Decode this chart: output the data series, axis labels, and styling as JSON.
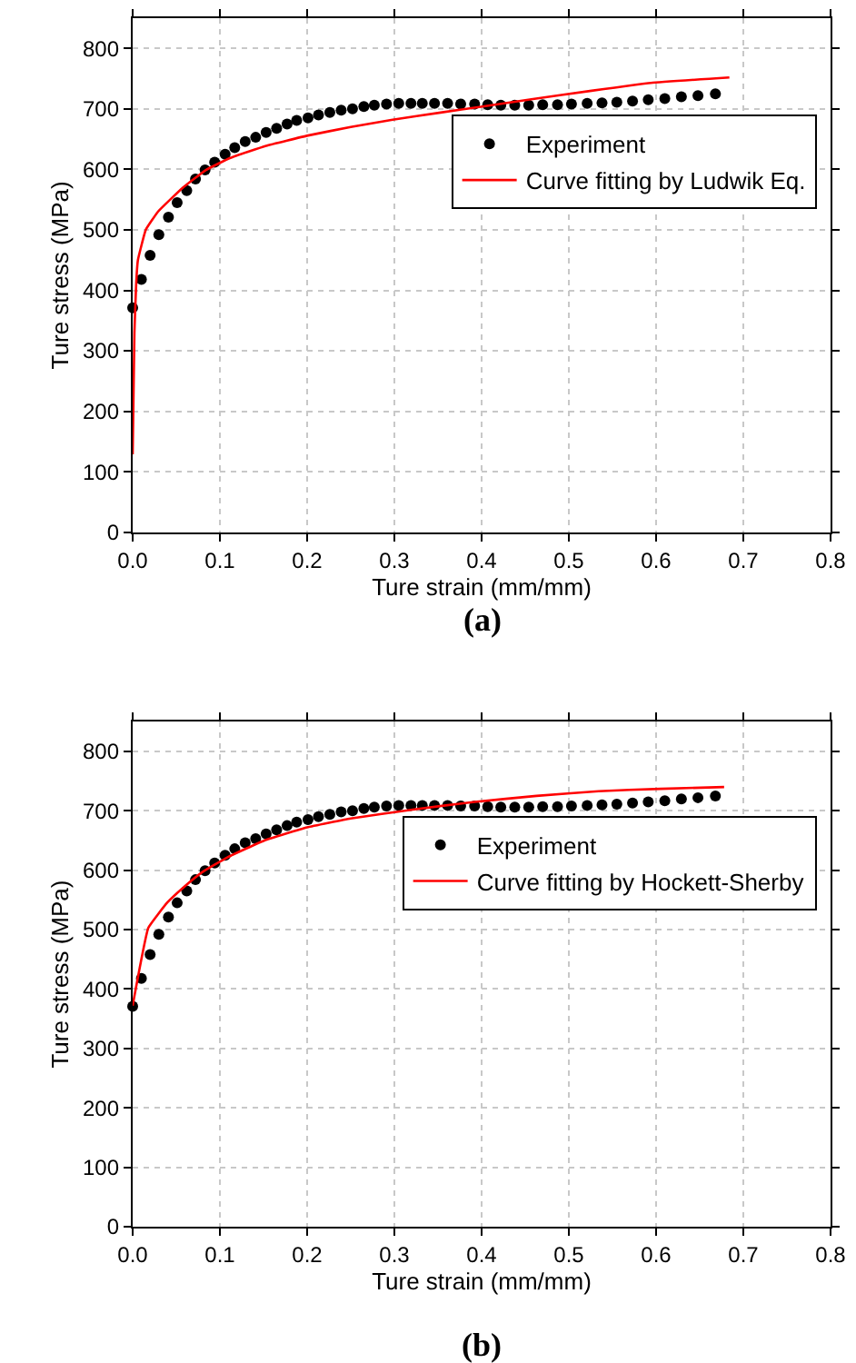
{
  "chart_data": [
    {
      "type": "scatter",
      "xlabel": "Ture strain (mm/mm)",
      "ylabel": "Ture stress (MPa)",
      "annotations": [
        "(a)"
      ],
      "xlim": [
        0,
        0.8
      ],
      "xticks": [
        {
          "value": 0,
          "label": "0.0"
        },
        0.1,
        0.2,
        0.3,
        0.4,
        0.5,
        0.6,
        0.7,
        0.8
      ],
      "ylim": [
        0,
        850
      ],
      "yticks": [
        0,
        100,
        200,
        300,
        400,
        500,
        600,
        700,
        800
      ],
      "grid": true,
      "legend": "right",
      "line_style": "solid",
      "series": [
        {
          "name": "Experiment",
          "type": "scatter",
          "marker": "circle",
          "color": "#000000",
          "x": [
            0,
            0.01,
            0.02,
            0.03,
            0.041,
            0.051,
            0.062,
            0.072,
            0.083,
            0.094,
            0.106,
            0.117,
            0.129,
            0.141,
            0.153,
            0.165,
            0.177,
            0.188,
            0.201,
            0.213,
            0.226,
            0.239,
            0.252,
            0.265,
            0.277,
            0.291,
            0.305,
            0.319,
            0.332,
            0.346,
            0.361,
            0.376,
            0.392,
            0.407,
            0.422,
            0.438,
            0.454,
            0.47,
            0.487,
            0.503,
            0.521,
            0.538,
            0.555,
            0.573,
            0.591,
            0.61,
            0.629,
            0.648,
            0.668
          ],
          "values": [
            371,
            418,
            458,
            492,
            521,
            545,
            565,
            584,
            599,
            612,
            625,
            636,
            646,
            653,
            661,
            668,
            675,
            681,
            685,
            690,
            694,
            698,
            700,
            704,
            706,
            708,
            709,
            709,
            709,
            709,
            709,
            708,
            708,
            707,
            706,
            706,
            706,
            707,
            707,
            708,
            709,
            710,
            711,
            713,
            715,
            717,
            720,
            722,
            725
          ]
        },
        {
          "name": "Curve fitting by Ludwik Eq.",
          "type": "line",
          "color": "#ff0000",
          "x": [
            0,
            0.002,
            0.004,
            0.006,
            0.015,
            0.029,
            0.057,
            0.084,
            0.112,
            0.153,
            0.201,
            0.25,
            0.298,
            0.353,
            0.401,
            0.457,
            0.526,
            0.594,
            0.684
          ],
          "values": [
            129,
            330,
            410,
            450,
            500,
            530,
            569,
            599,
            619,
            639,
            656,
            670,
            682,
            694,
            704,
            716,
            730,
            743,
            752
          ]
        }
      ]
    },
    {
      "type": "scatter",
      "xlabel": "Ture strain (mm/mm)",
      "ylabel": "Ture stress (MPa)",
      "annotations": [
        "(b)"
      ],
      "xlim": [
        0,
        0.8
      ],
      "xticks": [
        {
          "value": 0,
          "label": "0.0"
        },
        0.1,
        0.2,
        0.3,
        0.4,
        0.5,
        0.6,
        0.7,
        0.8
      ],
      "ylim": [
        0,
        850
      ],
      "yticks": [
        0,
        100,
        200,
        300,
        400,
        500,
        600,
        700,
        800
      ],
      "grid": true,
      "legend": "right",
      "line_style": "solid",
      "series": [
        {
          "name": "Experiment",
          "type": "scatter",
          "marker": "circle",
          "color": "#000000",
          "x": [
            0,
            0.01,
            0.02,
            0.03,
            0.041,
            0.051,
            0.062,
            0.072,
            0.083,
            0.094,
            0.106,
            0.117,
            0.129,
            0.141,
            0.153,
            0.165,
            0.177,
            0.188,
            0.201,
            0.213,
            0.226,
            0.239,
            0.252,
            0.265,
            0.277,
            0.291,
            0.305,
            0.319,
            0.332,
            0.346,
            0.361,
            0.376,
            0.392,
            0.407,
            0.422,
            0.438,
            0.454,
            0.47,
            0.487,
            0.503,
            0.521,
            0.538,
            0.555,
            0.573,
            0.591,
            0.61,
            0.629,
            0.648,
            0.668
          ],
          "values": [
            371,
            418,
            458,
            492,
            521,
            545,
            565,
            584,
            599,
            612,
            625,
            636,
            646,
            653,
            661,
            668,
            675,
            681,
            685,
            690,
            694,
            698,
            700,
            704,
            706,
            708,
            709,
            709,
            709,
            709,
            709,
            708,
            708,
            707,
            706,
            706,
            706,
            707,
            707,
            708,
            709,
            710,
            711,
            713,
            715,
            717,
            720,
            722,
            725
          ]
        },
        {
          "name": "Curve fitting by Hockett-Sherby",
          "type": "line",
          "color": "#ff0000",
          "x": [
            0,
            0.018,
            0.04,
            0.059,
            0.08,
            0.109,
            0.151,
            0.2,
            0.25,
            0.321,
            0.392,
            0.463,
            0.534,
            0.605,
            0.678
          ],
          "values": [
            372,
            503,
            546,
            572,
            597,
            622,
            650,
            672,
            687,
            702,
            715,
            725,
            733,
            737,
            740
          ]
        }
      ]
    }
  ]
}
